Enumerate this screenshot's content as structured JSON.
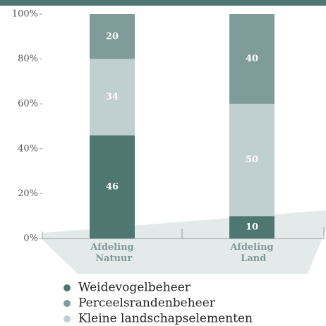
{
  "chart_data": {
    "type": "stacked_bar",
    "categories": [
      "Afdeling Natuur",
      "Afdeling Land"
    ],
    "series": [
      {
        "name": "Weidevogelbeheer",
        "color": "#4e7772",
        "values": [
          46,
          10
        ]
      },
      {
        "name": "Perceelsrandenbeheer",
        "color": "#7f9c9b",
        "values": [
          20,
          40
        ]
      },
      {
        "name": "Kleine landschapselementen",
        "color": "#c0cfcf",
        "values": [
          34,
          50
        ]
      }
    ],
    "stack_order": [
      0,
      2,
      1
    ],
    "ylim": [
      0,
      100
    ],
    "yticks": [
      {
        "value": 0,
        "label": "0%"
      },
      {
        "value": 20,
        "label": "20%"
      },
      {
        "value": 40,
        "label": "40%"
      },
      {
        "value": 60,
        "label": "60%"
      },
      {
        "value": 80,
        "label": "80%"
      },
      {
        "value": 100,
        "label": "100%"
      }
    ]
  }
}
